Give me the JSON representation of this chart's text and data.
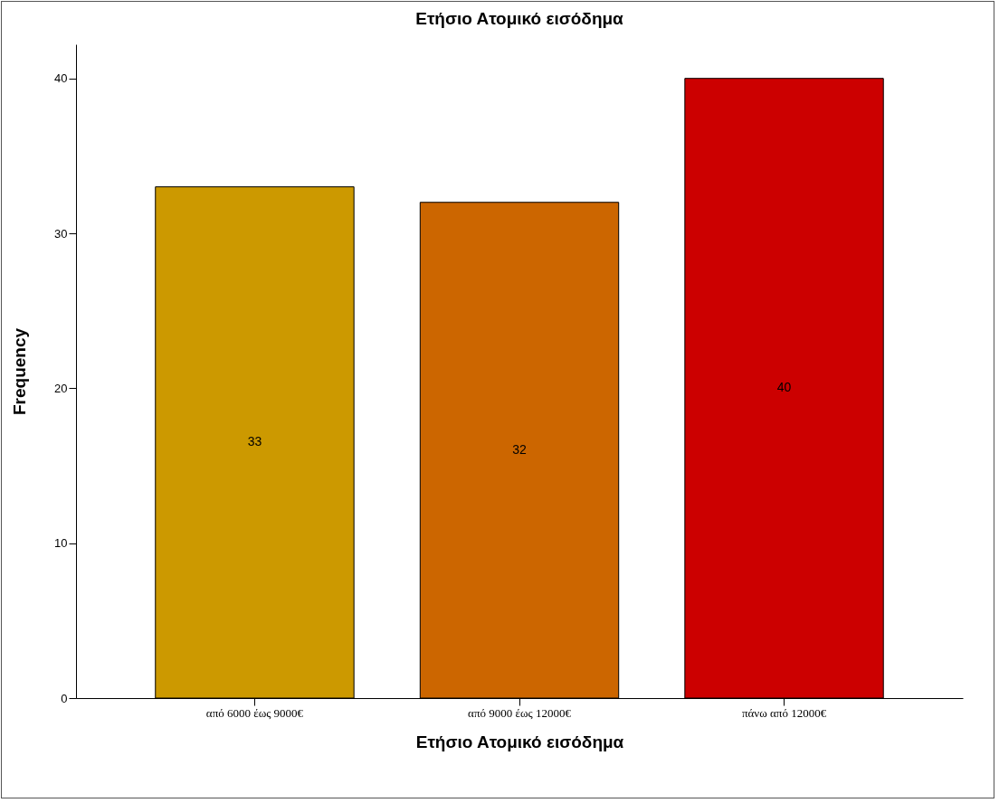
{
  "chart_data": {
    "type": "bar",
    "title": "Ετήσιο Ατομικό εισόδημα",
    "xlabel": "Ετήσιο Ατομικό εισόδημα",
    "ylabel": "Frequency",
    "categories": [
      "από 6000 έως 9000€",
      "από 9000 έως 12000€",
      "πάνω από 12000€"
    ],
    "values": [
      33,
      32,
      40
    ],
    "colors": [
      "#cc9900",
      "#cc6600",
      "#cc0000"
    ],
    "ylim": [
      0,
      42.2
    ],
    "yticks": [
      0,
      10,
      20,
      30,
      40
    ],
    "grid": false,
    "data_labels": true
  }
}
